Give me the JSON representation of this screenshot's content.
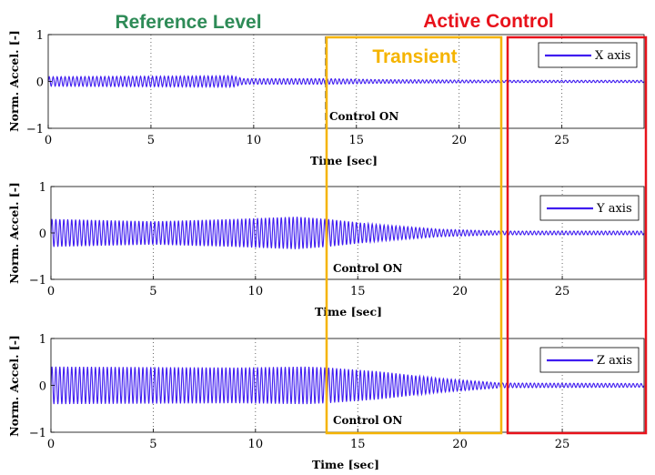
{
  "header": {
    "reference_label": "Reference Level",
    "active_label": "Active Control",
    "transient_label": "Transient",
    "reference_color": "#2e8b57",
    "active_color": "#e8121b",
    "transient_color": "#f5b400"
  },
  "chart_data": [
    {
      "type": "line",
      "series": [
        {
          "name": "X axis",
          "color": "#3f1cf0"
        }
      ],
      "legend": "top-right",
      "ylabel": "Norm. Accel. [-]",
      "xlabel": "Time [sec]",
      "xlim": [
        0,
        29
      ],
      "ylim": [
        -1,
        1
      ],
      "xticks": [
        0,
        5,
        10,
        15,
        20,
        25
      ],
      "yticks": [
        -1,
        0,
        1
      ],
      "x_tick_labels": [
        "0",
        "5",
        "10",
        "15",
        "20",
        "25"
      ],
      "y_tick_labels": [
        "−1",
        "0",
        "1"
      ],
      "dotted_gridlines_x": [
        5,
        10,
        15,
        20,
        25
      ],
      "control_on_time": 13.5,
      "control_on_label": "Control ON",
      "envelope_time": [
        0,
        9,
        9.5,
        13.5,
        16,
        20,
        22,
        29
      ],
      "envelope_amplitude": [
        0.1,
        0.12,
        0.06,
        0.06,
        0.04,
        0.03,
        0.025,
        0.025
      ]
    },
    {
      "type": "line",
      "series": [
        {
          "name": "Y axis",
          "color": "#3f1cf0"
        }
      ],
      "legend": "top-right",
      "ylabel": "Norm. Accel. [-]",
      "xlabel": "Time [sec]",
      "xlim": [
        0,
        29
      ],
      "ylim": [
        -1,
        1
      ],
      "xticks": [
        0,
        5,
        10,
        15,
        20,
        25
      ],
      "yticks": [
        -1,
        0,
        1
      ],
      "x_tick_labels": [
        "0",
        "5",
        "10",
        "15",
        "20",
        "25"
      ],
      "y_tick_labels": [
        "−1",
        "0",
        "1"
      ],
      "dotted_gridlines_x": [
        5,
        10,
        15,
        20,
        25
      ],
      "control_on_label": "Control ON",
      "envelope_time": [
        0,
        5,
        9,
        12,
        13.5,
        16,
        19,
        22,
        29
      ],
      "envelope_amplitude": [
        0.3,
        0.25,
        0.3,
        0.35,
        0.3,
        0.18,
        0.08,
        0.04,
        0.04
      ]
    },
    {
      "type": "line",
      "series": [
        {
          "name": "Z axis",
          "color": "#3f1cf0"
        }
      ],
      "legend": "top-right",
      "ylabel": "Norm. Accel. [-]",
      "xlabel": "Time [sec]",
      "xlim": [
        0,
        29
      ],
      "ylim": [
        -1,
        1
      ],
      "xticks": [
        0,
        5,
        10,
        15,
        20,
        25
      ],
      "yticks": [
        -1,
        0,
        1
      ],
      "x_tick_labels": [
        "0",
        "5",
        "10",
        "15",
        "20",
        "25"
      ],
      "y_tick_labels": [
        "−1",
        "0",
        "1"
      ],
      "dotted_gridlines_x": [
        5,
        10,
        15,
        20,
        25
      ],
      "control_on_label": "Control ON",
      "envelope_time": [
        0,
        9,
        12.5,
        13.5,
        16,
        19,
        22,
        29
      ],
      "envelope_amplitude": [
        0.4,
        0.38,
        0.4,
        0.38,
        0.3,
        0.15,
        0.05,
        0.04
      ]
    }
  ]
}
